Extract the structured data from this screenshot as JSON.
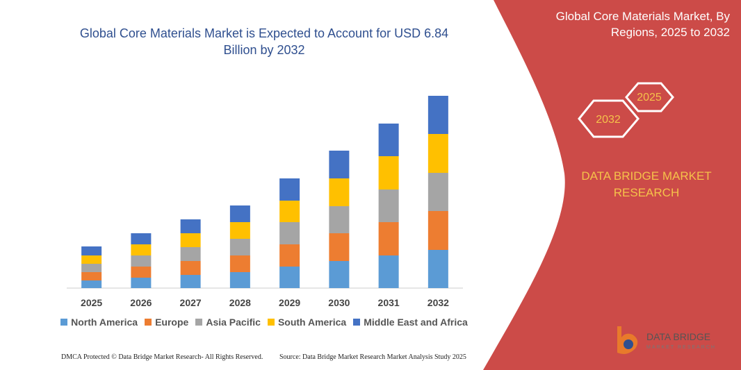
{
  "chart_data": {
    "type": "bar",
    "stacked": true,
    "title": "Global Core Materials Market is Expected to Account for USD 6.84 Billion by 2032",
    "categories": [
      "2025",
      "2026",
      "2027",
      "2028",
      "2029",
      "2030",
      "2031",
      "2032"
    ],
    "series": [
      {
        "name": "North America",
        "color": "#5b9bd5",
        "values": [
          11,
          15,
          19,
          23,
          31,
          39,
          47,
          55
        ]
      },
      {
        "name": "Europe",
        "color": "#ed7d31",
        "values": [
          12,
          16,
          20,
          24,
          32,
          40,
          48,
          56
        ]
      },
      {
        "name": "Asia Pacific",
        "color": "#a5a5a5",
        "values": [
          12,
          16,
          20,
          24,
          32,
          39,
          47,
          55
        ]
      },
      {
        "name": "South America",
        "color": "#ffc000",
        "values": [
          12,
          16,
          20,
          24,
          31,
          40,
          48,
          56
        ]
      },
      {
        "name": "Middle East and Africa",
        "color": "#4472c4",
        "values": [
          13,
          16,
          20,
          24,
          32,
          40,
          47,
          55
        ]
      }
    ],
    "ylim": [
      0,
      280
    ],
    "legend": "bottom"
  },
  "panel": {
    "title": "Global Core Materials Market, By Regions, 2025 to 2032",
    "hexagons": [
      "2025",
      "2032"
    ],
    "brand": "DATA BRIDGE MARKET RESEARCH",
    "logo": "DATA BRIDGE",
    "logo_sub": "MARKET RESEARCH"
  },
  "footer": {
    "left": "DMCA Protected © Data Bridge Market Research- All Rights Reserved.",
    "right": "Source: Data Bridge Market Research Market Analysis Study 2025"
  }
}
